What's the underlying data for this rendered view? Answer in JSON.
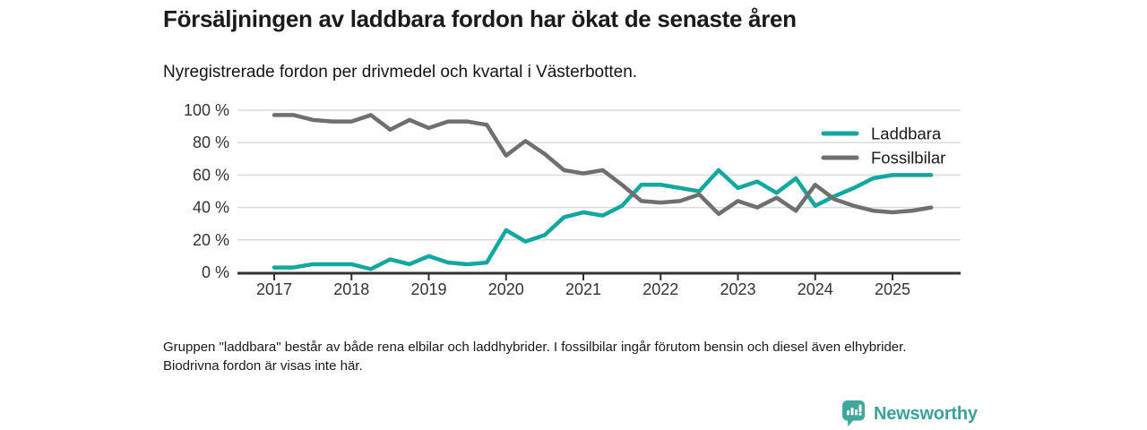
{
  "header": {
    "title": "Försäljningen av laddbara fordon har ökat de senaste åren",
    "subtitle": "Nyregistrerade fordon per drivmedel och kvartal i Västerbotten."
  },
  "chart_data": {
    "type": "line",
    "title": "Nyregistrerade fordon per drivmedel och kvartal i Västerbotten",
    "x_unit": "quarter",
    "x_start": "2017-Q1",
    "x_end": "2025-Q3",
    "x_tick_labels": [
      "2017",
      "2018",
      "2019",
      "2020",
      "2021",
      "2022",
      "2023",
      "2024",
      "2025"
    ],
    "y_ticks": [
      {
        "value": 100,
        "label": "100 %"
      },
      {
        "value": 80,
        "label": "80 %"
      },
      {
        "value": 60,
        "label": "60 %"
      },
      {
        "value": 40,
        "label": "40 %"
      },
      {
        "value": 20,
        "label": "20 %"
      },
      {
        "value": 0,
        "label": "0 %"
      }
    ],
    "ylim": [
      0,
      100
    ],
    "grid": true,
    "legend_position": "top-right",
    "series": [
      {
        "name": "Laddbara",
        "color": "#12a7a0",
        "values": [
          3,
          3,
          5,
          5,
          5,
          2,
          8,
          5,
          10,
          6,
          5,
          6,
          26,
          19,
          23,
          34,
          37,
          35,
          41,
          54,
          54,
          52,
          50,
          63,
          52,
          56,
          49,
          58,
          41,
          47,
          52,
          58,
          60,
          60,
          60
        ]
      },
      {
        "name": "Fossilbilar",
        "color": "#6f6f6f",
        "values": [
          97,
          97,
          94,
          93,
          93,
          97,
          88,
          94,
          89,
          93,
          93,
          91,
          72,
          81,
          73,
          63,
          61,
          63,
          54,
          44,
          43,
          44,
          48,
          36,
          44,
          40,
          46,
          38,
          54,
          45,
          41,
          38,
          37,
          38,
          40
        ]
      }
    ],
    "colors": {
      "grid": "#dbdbdb",
      "axis": "#333333",
      "tick_label": "#333333",
      "legend_label": "#1a1a1a"
    }
  },
  "footnote": "Gruppen \"laddbara\" består av både rena elbilar och laddhybrider. I fossilbilar ingår förutom bensin och diesel även elhybrider. Biodrivna fordon är visas inte här.",
  "logo": {
    "text": "Newsworthy",
    "icon": "bar-chart-speech-bubble-icon",
    "icon_color": "#41a69e",
    "text_color": "#3aa29b"
  }
}
